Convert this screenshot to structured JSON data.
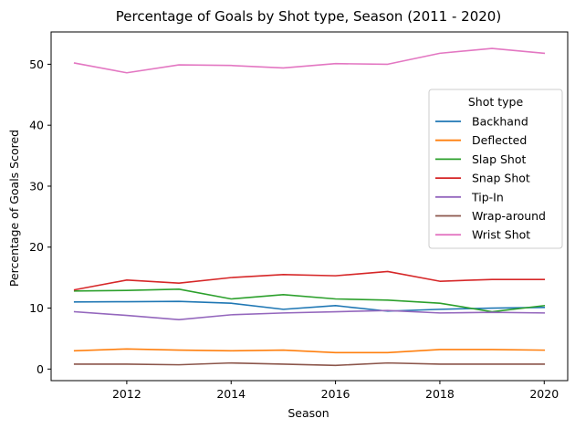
{
  "chart_data": {
    "type": "line",
    "title": "Percentage of Goals by Shot type, Season (2011 - 2020)",
    "xlabel": "Season",
    "ylabel": "Percentage of Goals Scored",
    "x": [
      2011,
      2012,
      2013,
      2014,
      2015,
      2016,
      2017,
      2018,
      2019,
      2020
    ],
    "xlim": [
      2010.55,
      2020.45
    ],
    "ylim": [
      -1.9,
      55.3
    ],
    "xticks": [
      2012,
      2014,
      2016,
      2018,
      2020
    ],
    "yticks": [
      0,
      10,
      20,
      30,
      40,
      50
    ],
    "grid": false,
    "legend": {
      "title": "Shot type",
      "placement": "center-right"
    },
    "series": [
      {
        "name": "Backhand",
        "color": "#1f77b4",
        "values": [
          11.0,
          11.05,
          11.1,
          10.8,
          9.8,
          10.4,
          9.5,
          9.8,
          10.0,
          10.1
        ]
      },
      {
        "name": "Deflected",
        "color": "#ff7f0e",
        "values": [
          3.0,
          3.3,
          3.1,
          3.0,
          3.1,
          2.7,
          2.7,
          3.2,
          3.2,
          3.1
        ]
      },
      {
        "name": "Slap Shot",
        "color": "#2ca02c",
        "values": [
          12.8,
          12.9,
          13.1,
          11.5,
          12.2,
          11.5,
          11.3,
          10.8,
          9.4,
          10.4
        ]
      },
      {
        "name": "Snap Shot",
        "color": "#d62728",
        "values": [
          13.0,
          14.6,
          14.1,
          15.0,
          15.5,
          15.3,
          16.0,
          14.4,
          14.7,
          14.7
        ]
      },
      {
        "name": "Tip-In",
        "color": "#9467bd",
        "values": [
          9.4,
          8.8,
          8.1,
          8.9,
          9.2,
          9.4,
          9.6,
          9.2,
          9.3,
          9.2
        ]
      },
      {
        "name": "Wrap-around",
        "color": "#8c564b",
        "values": [
          0.8,
          0.8,
          0.7,
          1.0,
          0.8,
          0.6,
          1.0,
          0.8,
          0.8,
          0.8
        ]
      },
      {
        "name": "Wrist Shot",
        "color": "#e377c2",
        "values": [
          50.2,
          48.6,
          49.9,
          49.8,
          49.4,
          50.1,
          50.0,
          51.8,
          52.6,
          51.8
        ]
      }
    ]
  }
}
